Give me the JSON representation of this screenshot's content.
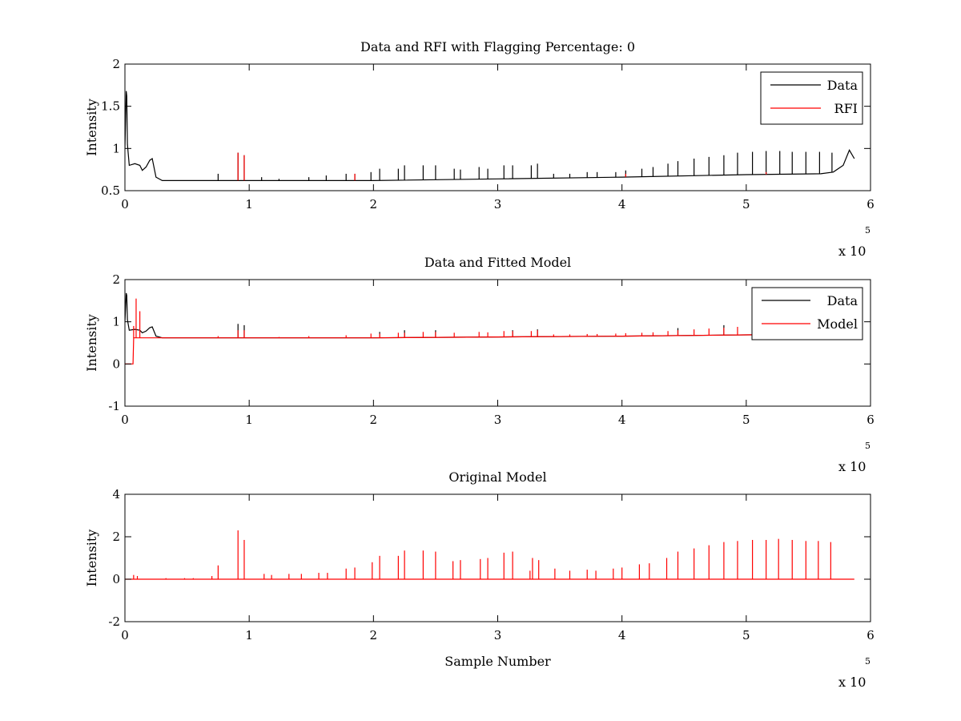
{
  "colors": {
    "data": "#000000",
    "model": "#ff0000",
    "axes": "#000000",
    "background": "#ffffff"
  },
  "chart_data": [
    {
      "type": "line",
      "title": "Data and RFI with Flagging Percentage: 0",
      "xlabel": "",
      "ylabel": "Intensity",
      "xlim": [
        0,
        6
      ],
      "ylim": [
        0.5,
        2
      ],
      "xticks": [
        "0",
        "1",
        "2",
        "3",
        "4",
        "5",
        "6"
      ],
      "yticks": [
        "0.5",
        "1",
        "1.5",
        "2"
      ],
      "ytick_values": [
        0.5,
        1,
        1.5,
        2
      ],
      "x_exponent": {
        "base": "x 10",
        "power": "5"
      },
      "grid": false,
      "legend": {
        "placement": "top-right",
        "entries": [
          "Data",
          "RFI"
        ]
      },
      "series": [
        {
          "name": "Data",
          "color": "#000000",
          "baseline": [
            [
              0.0,
              1.0
            ],
            [
              0.01,
              1.68
            ],
            [
              0.015,
              1.62
            ],
            [
              0.02,
              1.05
            ],
            [
              0.035,
              0.8
            ],
            [
              0.08,
              0.82
            ],
            [
              0.12,
              0.8
            ],
            [
              0.14,
              0.74
            ],
            [
              0.17,
              0.78
            ],
            [
              0.2,
              0.86
            ],
            [
              0.22,
              0.88
            ],
            [
              0.25,
              0.66
            ],
            [
              0.3,
              0.62
            ],
            [
              0.5,
              0.62
            ],
            [
              1.0,
              0.62
            ],
            [
              2.0,
              0.62
            ],
            [
              3.0,
              0.64
            ],
            [
              4.0,
              0.66
            ],
            [
              5.0,
              0.69
            ],
            [
              5.6,
              0.7
            ],
            [
              5.7,
              0.72
            ],
            [
              5.78,
              0.8
            ],
            [
              5.83,
              0.98
            ],
            [
              5.87,
              0.88
            ]
          ],
          "spikes": [
            [
              0.75,
              0.7
            ],
            [
              0.91,
              0.95
            ],
            [
              0.96,
              0.92
            ],
            [
              1.1,
              0.66
            ],
            [
              1.24,
              0.64
            ],
            [
              1.48,
              0.66
            ],
            [
              1.62,
              0.68
            ],
            [
              1.78,
              0.7
            ],
            [
              1.85,
              0.7
            ],
            [
              1.98,
              0.72
            ],
            [
              2.05,
              0.76
            ],
            [
              2.2,
              0.76
            ],
            [
              2.25,
              0.8
            ],
            [
              2.4,
              0.8
            ],
            [
              2.5,
              0.8
            ],
            [
              2.65,
              0.76
            ],
            [
              2.7,
              0.75
            ],
            [
              2.85,
              0.78
            ],
            [
              2.92,
              0.76
            ],
            [
              3.05,
              0.8
            ],
            [
              3.12,
              0.8
            ],
            [
              3.27,
              0.8
            ],
            [
              3.32,
              0.82
            ],
            [
              3.45,
              0.7
            ],
            [
              3.58,
              0.7
            ],
            [
              3.72,
              0.72
            ],
            [
              3.8,
              0.72
            ],
            [
              3.95,
              0.72
            ],
            [
              4.03,
              0.74
            ],
            [
              4.16,
              0.76
            ],
            [
              4.25,
              0.78
            ],
            [
              4.37,
              0.82
            ],
            [
              4.45,
              0.85
            ],
            [
              4.58,
              0.88
            ],
            [
              4.7,
              0.9
            ],
            [
              4.82,
              0.92
            ],
            [
              4.93,
              0.95
            ],
            [
              5.05,
              0.96
            ],
            [
              5.16,
              0.97
            ],
            [
              5.27,
              0.97
            ],
            [
              5.37,
              0.96
            ],
            [
              5.48,
              0.96
            ],
            [
              5.59,
              0.96
            ],
            [
              5.69,
              0.95
            ]
          ]
        },
        {
          "name": "RFI",
          "color": "#ff0000",
          "spikes": [
            [
              0.91,
              0.95
            ],
            [
              0.96,
              0.92
            ],
            [
              1.85,
              0.7
            ],
            [
              4.03,
              0.7
            ],
            [
              5.16,
              0.72
            ]
          ]
        }
      ]
    },
    {
      "type": "line",
      "title": "Data and Fitted Model",
      "xlabel": "",
      "ylabel": "Intensity",
      "xlim": [
        0,
        6
      ],
      "ylim": [
        -1,
        2
      ],
      "xticks": [
        "0",
        "1",
        "2",
        "3",
        "4",
        "5",
        "6"
      ],
      "yticks": [
        "-1",
        "0",
        "1",
        "2"
      ],
      "ytick_values": [
        -1,
        0,
        1,
        2
      ],
      "x_exponent": {
        "base": "x 10",
        "power": "5"
      },
      "grid": false,
      "legend": {
        "placement": "top-right",
        "entries": [
          "Data",
          "Model"
        ]
      },
      "series": [
        {
          "name": "Data",
          "color": "#000000",
          "baseline": [
            [
              0.0,
              1.0
            ],
            [
              0.01,
              1.68
            ],
            [
              0.015,
              1.62
            ],
            [
              0.02,
              1.05
            ],
            [
              0.035,
              0.8
            ],
            [
              0.08,
              0.82
            ],
            [
              0.12,
              0.8
            ],
            [
              0.14,
              0.74
            ],
            [
              0.17,
              0.78
            ],
            [
              0.2,
              0.86
            ],
            [
              0.22,
              0.88
            ],
            [
              0.25,
              0.66
            ],
            [
              0.3,
              0.62
            ],
            [
              0.5,
              0.62
            ],
            [
              1.0,
              0.62
            ],
            [
              2.0,
              0.62
            ],
            [
              3.0,
              0.64
            ],
            [
              4.0,
              0.66
            ],
            [
              5.0,
              0.69
            ],
            [
              5.6,
              0.7
            ],
            [
              5.7,
              0.72
            ],
            [
              5.78,
              0.8
            ],
            [
              5.83,
              0.98
            ],
            [
              5.87,
              0.88
            ]
          ],
          "spikes": [
            [
              0.91,
              0.95
            ],
            [
              0.96,
              0.92
            ],
            [
              2.05,
              0.76
            ],
            [
              2.25,
              0.8
            ],
            [
              2.5,
              0.8
            ],
            [
              3.12,
              0.8
            ],
            [
              3.32,
              0.82
            ],
            [
              4.45,
              0.85
            ],
            [
              4.82,
              0.92
            ],
            [
              5.05,
              0.96
            ]
          ]
        },
        {
          "name": "Model",
          "color": "#ff0000",
          "baseline": [
            [
              0.0,
              0.0
            ],
            [
              0.065,
              0.0
            ],
            [
              0.07,
              0.62
            ],
            [
              0.3,
              0.62
            ],
            [
              1.0,
              0.62
            ],
            [
              2.0,
              0.62
            ],
            [
              3.0,
              0.64
            ],
            [
              4.0,
              0.66
            ],
            [
              5.0,
              0.69
            ],
            [
              5.87,
              0.72
            ]
          ],
          "spikes": [
            [
              0.07,
              0.9
            ],
            [
              0.09,
              1.55
            ],
            [
              0.12,
              1.25
            ],
            [
              0.75,
              0.66
            ],
            [
              0.91,
              0.8
            ],
            [
              0.96,
              0.8
            ],
            [
              1.24,
              0.64
            ],
            [
              1.48,
              0.66
            ],
            [
              1.78,
              0.68
            ],
            [
              1.98,
              0.72
            ],
            [
              2.05,
              0.72
            ],
            [
              2.2,
              0.74
            ],
            [
              2.25,
              0.74
            ],
            [
              2.4,
              0.76
            ],
            [
              2.5,
              0.76
            ],
            [
              2.65,
              0.74
            ],
            [
              2.85,
              0.76
            ],
            [
              2.92,
              0.75
            ],
            [
              3.05,
              0.78
            ],
            [
              3.12,
              0.78
            ],
            [
              3.27,
              0.78
            ],
            [
              3.32,
              0.8
            ],
            [
              3.45,
              0.7
            ],
            [
              3.58,
              0.7
            ],
            [
              3.72,
              0.71
            ],
            [
              3.8,
              0.71
            ],
            [
              3.95,
              0.72
            ],
            [
              4.03,
              0.73
            ],
            [
              4.16,
              0.74
            ],
            [
              4.25,
              0.75
            ],
            [
              4.37,
              0.78
            ],
            [
              4.45,
              0.8
            ],
            [
              4.58,
              0.82
            ],
            [
              4.7,
              0.84
            ],
            [
              4.82,
              0.86
            ],
            [
              4.93,
              0.88
            ]
          ]
        }
      ]
    },
    {
      "type": "line",
      "title": "Original Model",
      "xlabel": "Sample Number",
      "ylabel": "Intensity",
      "xlim": [
        0,
        6
      ],
      "ylim": [
        -2,
        4
      ],
      "xticks": [
        "0",
        "1",
        "2",
        "3",
        "4",
        "5",
        "6"
      ],
      "yticks": [
        "-2",
        "0",
        "2",
        "4"
      ],
      "ytick_values": [
        -2,
        0,
        2,
        4
      ],
      "x_exponent": {
        "base": "x 10",
        "power": "5"
      },
      "grid": false,
      "series": [
        {
          "name": "Original Model",
          "color": "#ff0000",
          "baseline": [
            [
              0.0,
              0.0
            ],
            [
              5.87,
              0.0
            ]
          ],
          "spikes": [
            [
              0.07,
              0.2
            ],
            [
              0.1,
              0.15
            ],
            [
              0.33,
              0.05
            ],
            [
              0.48,
              0.05
            ],
            [
              0.55,
              0.05
            ],
            [
              0.7,
              0.15
            ],
            [
              0.75,
              0.65
            ],
            [
              0.91,
              2.3
            ],
            [
              0.96,
              1.85
            ],
            [
              1.12,
              0.25
            ],
            [
              1.18,
              0.2
            ],
            [
              1.32,
              0.25
            ],
            [
              1.42,
              0.25
            ],
            [
              1.56,
              0.3
            ],
            [
              1.63,
              0.3
            ],
            [
              1.78,
              0.5
            ],
            [
              1.85,
              0.55
            ],
            [
              1.99,
              0.8
            ],
            [
              2.05,
              1.1
            ],
            [
              2.2,
              1.1
            ],
            [
              2.25,
              1.35
            ],
            [
              2.4,
              1.35
            ],
            [
              2.5,
              1.3
            ],
            [
              2.64,
              0.85
            ],
            [
              2.7,
              0.9
            ],
            [
              2.86,
              0.95
            ],
            [
              2.92,
              1.0
            ],
            [
              3.05,
              1.25
            ],
            [
              3.12,
              1.3
            ],
            [
              3.26,
              0.4
            ],
            [
              3.28,
              1.0
            ],
            [
              3.33,
              0.9
            ],
            [
              3.46,
              0.5
            ],
            [
              3.58,
              0.4
            ],
            [
              3.72,
              0.45
            ],
            [
              3.79,
              0.4
            ],
            [
              3.93,
              0.5
            ],
            [
              4.0,
              0.55
            ],
            [
              4.14,
              0.7
            ],
            [
              4.22,
              0.75
            ],
            [
              4.36,
              1.0
            ],
            [
              4.45,
              1.3
            ],
            [
              4.58,
              1.45
            ],
            [
              4.7,
              1.6
            ],
            [
              4.82,
              1.75
            ],
            [
              4.93,
              1.8
            ],
            [
              5.05,
              1.85
            ],
            [
              5.16,
              1.85
            ],
            [
              5.26,
              1.9
            ],
            [
              5.37,
              1.85
            ],
            [
              5.48,
              1.8
            ],
            [
              5.58,
              1.8
            ],
            [
              5.68,
              1.75
            ]
          ]
        }
      ]
    }
  ]
}
